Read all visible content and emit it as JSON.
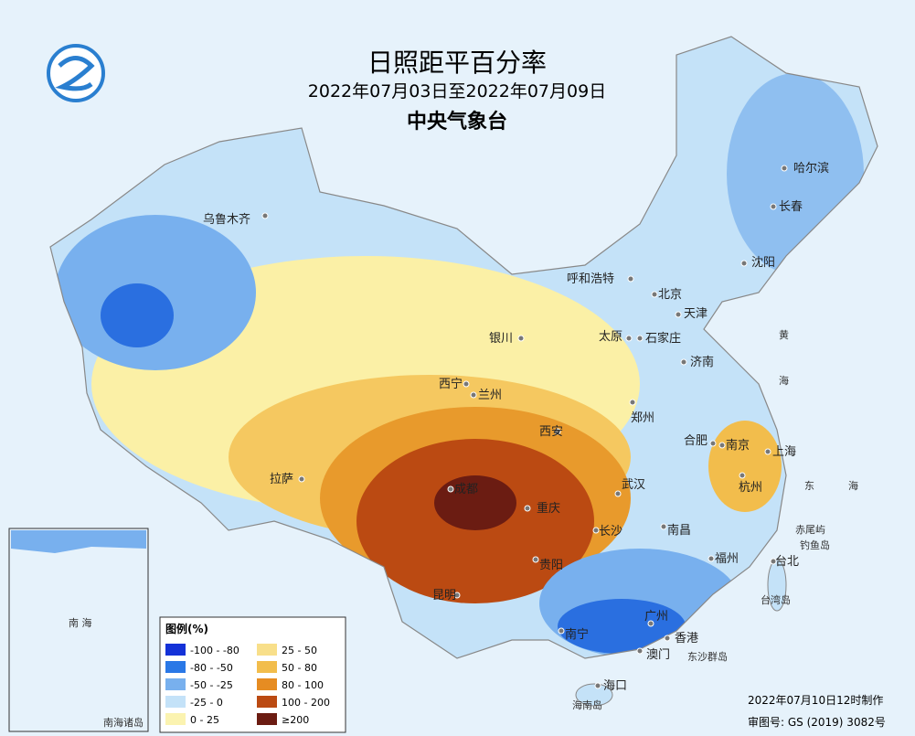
{
  "header": {
    "title": "日照距平百分率",
    "subtitle": "2022年07月03日至2022年07月09日",
    "publisher": "中央气象台"
  },
  "cities": [
    "乌鲁木齐",
    "哈尔滨",
    "长春",
    "沈阳",
    "呼和浩特",
    "北京",
    "天津",
    "石家庄",
    "太原",
    "济南",
    "银川",
    "西宁",
    "兰州",
    "郑州",
    "西安",
    "合肥",
    "南京",
    "上海",
    "拉萨",
    "成都",
    "武汉",
    "杭州",
    "重庆",
    "长沙",
    "南昌",
    "福州",
    "台北",
    "贵阳",
    "昆明",
    "南宁",
    "广州",
    "香港",
    "澳门",
    "海口"
  ],
  "places": [
    "赤尾屿",
    "钓鱼岛",
    "台湾岛",
    "东沙群岛",
    "海南岛",
    "东",
    "海",
    "黄",
    "海"
  ],
  "inset": {
    "label": "南海诸岛",
    "sea": "南 海"
  },
  "legend": {
    "title": "图例(%)",
    "items": [
      {
        "label": "-100 - -80",
        "color": "#1432d8"
      },
      {
        "label": "-80 - -50",
        "color": "#2a78e6"
      },
      {
        "label": "-50 - -25",
        "color": "#78b0ee"
      },
      {
        "label": "-25 - 0",
        "color": "#c4e2f8"
      },
      {
        "label": "0 - 25",
        "color": "#fbf3b0"
      },
      {
        "label": "25 - 50",
        "color": "#f8df8a"
      },
      {
        "label": "50 - 80",
        "color": "#f2bd4c"
      },
      {
        "label": "80 - 100",
        "color": "#e68c22"
      },
      {
        "label": "100 - 200",
        "color": "#bb4a12"
      },
      {
        "label": "≥200",
        "color": "#6b1c12"
      }
    ]
  },
  "footer": {
    "made": "2022年07月10日12时制作",
    "approval": "审图号: GS (2019) 3082号"
  }
}
